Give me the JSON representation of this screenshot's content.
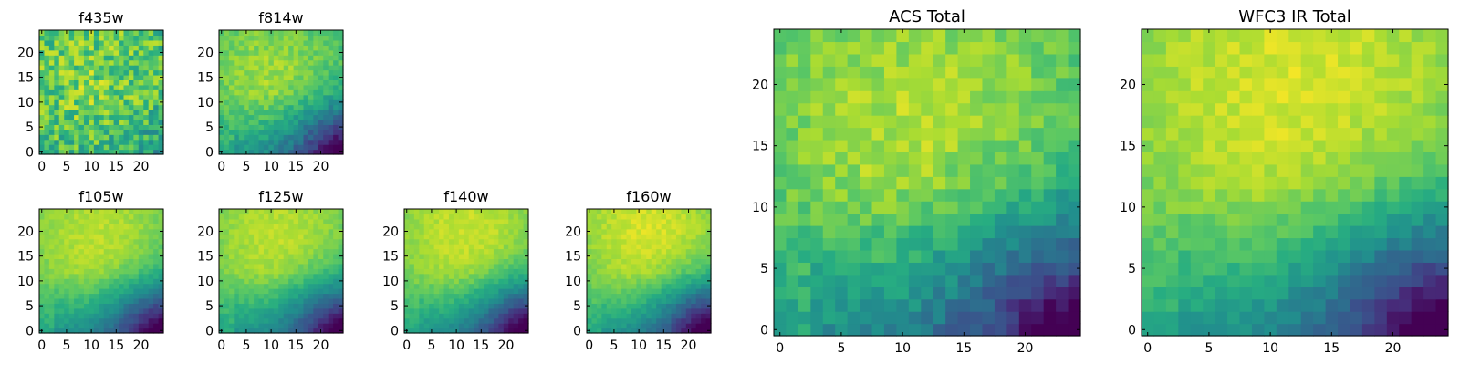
{
  "figure": {
    "colormap": "viridis",
    "colormap_stops": [
      "#440154",
      "#472c7a",
      "#3b518b",
      "#2c718e",
      "#21908d",
      "#27ad81",
      "#5cc863",
      "#aadc32",
      "#fde725"
    ]
  },
  "chart_data": [
    {
      "type": "heatmap",
      "title": "f435w",
      "grid_size": 25,
      "x_ticks": [
        0,
        5,
        10,
        15,
        20
      ],
      "y_ticks": [
        0,
        5,
        10,
        15,
        20
      ],
      "xlim": [
        0,
        24
      ],
      "ylim": [
        0,
        24
      ],
      "value_range": [
        0,
        1
      ],
      "pattern": {
        "base": 0.7,
        "bump_amp": 0.1,
        "bump_center": [
          11,
          13
        ],
        "bump_radius": 9,
        "corner_amp": 0.12,
        "noise_amp": 0.18,
        "seed": 11
      }
    },
    {
      "type": "heatmap",
      "title": "f814w",
      "grid_size": 25,
      "x_ticks": [
        0,
        5,
        10,
        15,
        20
      ],
      "y_ticks": [
        0,
        5,
        10,
        15,
        20
      ],
      "xlim": [
        0,
        24
      ],
      "ylim": [
        0,
        24
      ],
      "value_range": [
        0,
        1
      ],
      "pattern": {
        "base": 0.6,
        "bump_amp": 0.26,
        "bump_center": [
          10,
          15
        ],
        "bump_radius": 12,
        "corner_amp": 0.62,
        "noise_amp": 0.07,
        "seed": 23
      }
    },
    {
      "type": "heatmap",
      "title": "f105w",
      "grid_size": 25,
      "x_ticks": [
        0,
        5,
        10,
        15,
        20
      ],
      "y_ticks": [
        0,
        5,
        10,
        15,
        20
      ],
      "xlim": [
        0,
        24
      ],
      "ylim": [
        0,
        24
      ],
      "value_range": [
        0,
        1
      ],
      "pattern": {
        "base": 0.6,
        "bump_amp": 0.3,
        "bump_center": [
          11,
          19
        ],
        "bump_radius": 14,
        "corner_amp": 0.65,
        "noise_amp": 0.04,
        "seed": 37
      }
    },
    {
      "type": "heatmap",
      "title": "f125w",
      "grid_size": 25,
      "x_ticks": [
        0,
        5,
        10,
        15,
        20
      ],
      "y_ticks": [
        0,
        5,
        10,
        15,
        20
      ],
      "xlim": [
        0,
        24
      ],
      "ylim": [
        0,
        24
      ],
      "value_range": [
        0,
        1
      ],
      "pattern": {
        "base": 0.6,
        "bump_amp": 0.3,
        "bump_center": [
          11,
          19
        ],
        "bump_radius": 14,
        "corner_amp": 0.65,
        "noise_amp": 0.04,
        "seed": 41
      }
    },
    {
      "type": "heatmap",
      "title": "f140w",
      "grid_size": 25,
      "x_ticks": [
        0,
        5,
        10,
        15,
        20
      ],
      "y_ticks": [
        0,
        5,
        10,
        15,
        20
      ],
      "xlim": [
        0,
        24
      ],
      "ylim": [
        0,
        24
      ],
      "value_range": [
        0,
        1
      ],
      "pattern": {
        "base": 0.62,
        "bump_amp": 0.3,
        "bump_center": [
          12,
          20
        ],
        "bump_radius": 14,
        "corner_amp": 0.68,
        "noise_amp": 0.04,
        "seed": 53
      }
    },
    {
      "type": "heatmap",
      "title": "f160w",
      "grid_size": 25,
      "x_ticks": [
        0,
        5,
        10,
        15,
        20
      ],
      "y_ticks": [
        0,
        5,
        10,
        15,
        20
      ],
      "xlim": [
        0,
        24
      ],
      "ylim": [
        0,
        24
      ],
      "value_range": [
        0,
        1
      ],
      "pattern": {
        "base": 0.62,
        "bump_amp": 0.32,
        "bump_center": [
          12,
          20
        ],
        "bump_radius": 14,
        "corner_amp": 0.72,
        "noise_amp": 0.04,
        "seed": 67
      }
    },
    {
      "type": "heatmap",
      "title": "ACS Total",
      "grid_size": 25,
      "x_ticks": [
        0,
        5,
        10,
        15,
        20
      ],
      "y_ticks": [
        0,
        5,
        10,
        15,
        20
      ],
      "xlim": [
        0,
        24
      ],
      "ylim": [
        0,
        24
      ],
      "value_range": [
        0,
        1
      ],
      "pattern": {
        "base": 0.6,
        "bump_amp": 0.28,
        "bump_center": [
          11,
          17
        ],
        "bump_radius": 12,
        "corner_amp": 0.62,
        "noise_amp": 0.08,
        "seed": 79
      }
    },
    {
      "type": "heatmap",
      "title": "WFC3 IR Total",
      "grid_size": 25,
      "x_ticks": [
        0,
        5,
        10,
        15,
        20
      ],
      "y_ticks": [
        0,
        5,
        10,
        15,
        20
      ],
      "xlim": [
        0,
        24
      ],
      "ylim": [
        0,
        24
      ],
      "value_range": [
        0,
        1
      ],
      "pattern": {
        "base": 0.62,
        "bump_amp": 0.32,
        "bump_center": [
          12,
          20
        ],
        "bump_radius": 14,
        "corner_amp": 0.7,
        "noise_amp": 0.05,
        "seed": 97
      }
    }
  ]
}
